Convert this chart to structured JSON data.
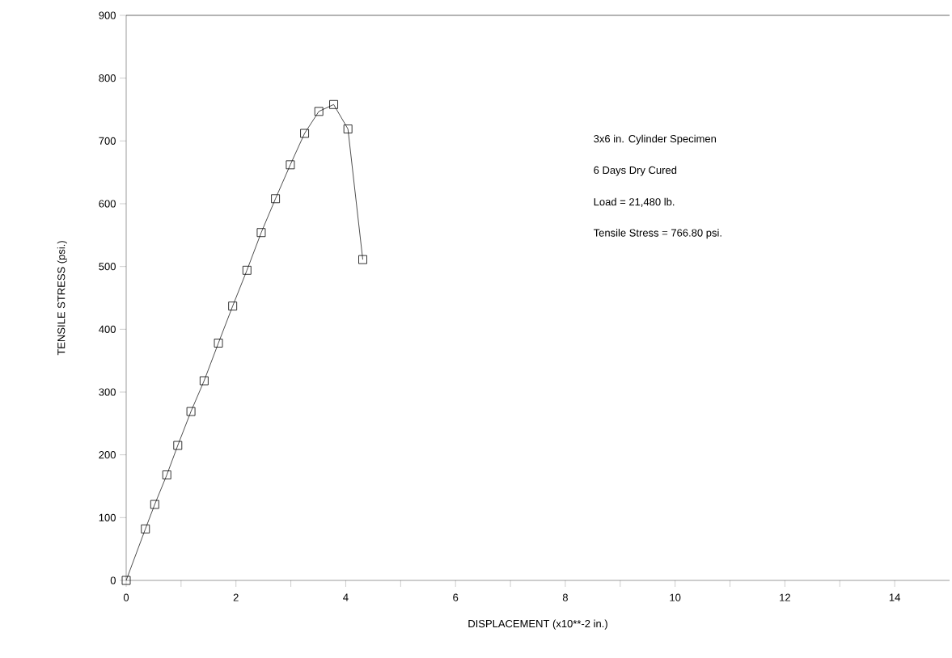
{
  "chart_data": {
    "type": "line",
    "xlabel": "DISPLACEMENT (x10**-2 in.)",
    "ylabel": "TENSILE STRESS (psi.)",
    "annotations": [
      "3x6 in. Cylinder Specimen",
      "6 Days Dry Cured",
      "Load = 21,480 lb.",
      "Tensile Stress = 766.80 psi."
    ],
    "x": [
      0,
      0.35,
      0.52,
      0.74,
      0.94,
      1.18,
      1.42,
      1.68,
      1.94,
      2.2,
      2.46,
      2.72,
      2.99,
      3.25,
      3.51,
      3.78,
      4.04,
      4.31
    ],
    "series": [
      {
        "color": "#000000",
        "values": [
          0,
          82,
          121,
          168,
          215,
          269,
          318,
          378,
          437,
          494,
          554,
          608,
          662,
          712,
          747,
          758,
          719,
          511
        ]
      }
    ],
    "xlim": [
      0,
      15
    ],
    "ylim": [
      0,
      900
    ],
    "xticks": [
      0,
      {
        "value": 1,
        "label": null
      },
      2,
      {
        "value": 3,
        "label": null
      },
      4,
      {
        "value": 5,
        "label": null
      },
      6,
      {
        "value": 7,
        "label": null
      },
      8,
      {
        "value": 9,
        "label": null
      },
      10,
      {
        "value": 11,
        "label": null
      },
      12,
      {
        "value": 13,
        "label": null
      },
      14
    ],
    "yticks": [
      0,
      100,
      200,
      300,
      400,
      500,
      600,
      700,
      800,
      900
    ],
    "marker": "square"
  }
}
